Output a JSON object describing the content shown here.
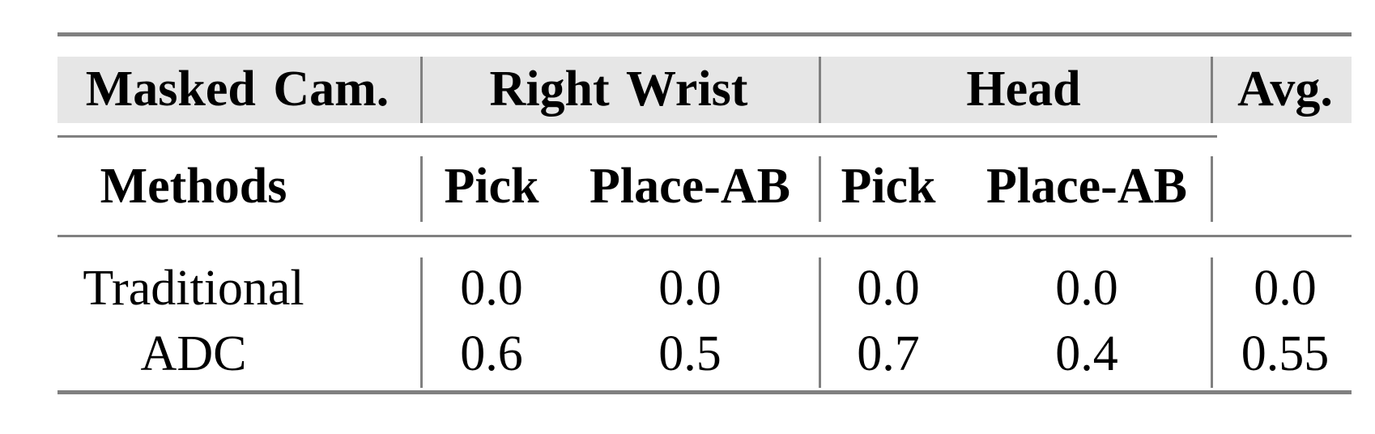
{
  "table": {
    "header_row1": {
      "masked_cam": "Masked Cam.",
      "right_wrist": "Right Wrist",
      "head": "Head",
      "avg": "Avg."
    },
    "header_row2": {
      "methods": "Methods",
      "cols": [
        "Pick",
        "Place-AB",
        "Pick",
        "Place-AB"
      ]
    },
    "rows": [
      {
        "method": "Traditional",
        "values": [
          "0.0",
          "0.0",
          "0.0",
          "0.0",
          "0.0"
        ]
      },
      {
        "method": "ADC",
        "values": [
          "0.6",
          "0.5",
          "0.7",
          "0.4",
          "0.55"
        ]
      }
    ],
    "colors": {
      "header_band": "#e6e6e6",
      "rules": "#808080"
    }
  }
}
